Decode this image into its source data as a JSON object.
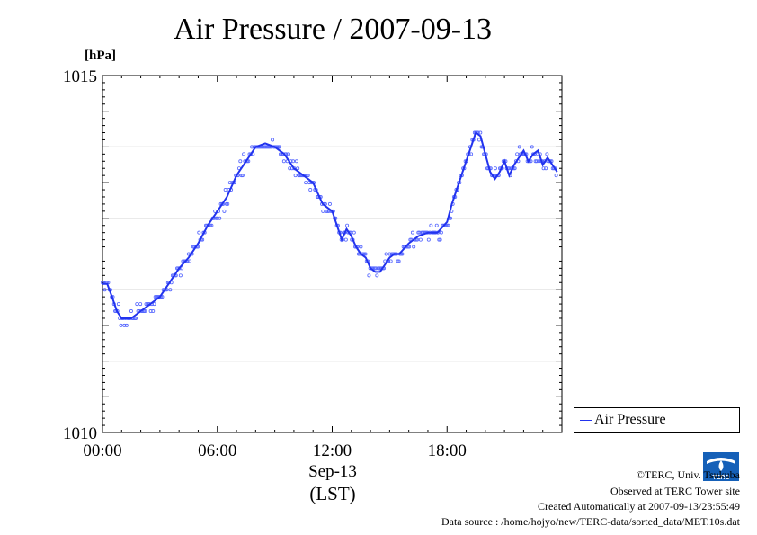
{
  "chart_data": {
    "type": "line",
    "title": "Air Pressure / 2007-09-13",
    "ylabel": "[hPa]",
    "xlabel_date": "Sep-13",
    "xlabel_tz": "(LST)",
    "ylim": [
      1010,
      1015
    ],
    "xlim": [
      0,
      24
    ],
    "y_tick_labels": [
      "1010",
      "1015"
    ],
    "y_gridlines": [
      1011,
      1012,
      1013,
      1014
    ],
    "x_ticks": [
      0,
      6,
      12,
      18
    ],
    "x_tick_labels": [
      "00:00",
      "06:00",
      "12:00",
      "18:00"
    ],
    "grid": "horizontal",
    "legend": "bottom-right, outside",
    "series": [
      {
        "name": "Air Pressure",
        "color": "#2233ee",
        "x": [
          0.0,
          0.25,
          0.5,
          0.75,
          1.0,
          1.5,
          2.0,
          2.5,
          3.0,
          3.5,
          4.0,
          4.5,
          5.0,
          5.5,
          6.0,
          6.5,
          7.0,
          7.5,
          8.0,
          8.5,
          9.0,
          9.5,
          10.0,
          10.5,
          11.0,
          11.25,
          11.5,
          12.0,
          12.25,
          12.5,
          12.75,
          13.0,
          13.25,
          13.5,
          13.75,
          14.0,
          14.25,
          14.5,
          14.75,
          15.0,
          15.25,
          15.5,
          16.0,
          16.5,
          17.0,
          17.5,
          18.0,
          18.25,
          18.5,
          18.75,
          19.0,
          19.25,
          19.5,
          19.75,
          20.0,
          20.25,
          20.5,
          20.75,
          21.0,
          21.25,
          21.5,
          22.0,
          22.25,
          22.5,
          22.75,
          23.0,
          23.25,
          23.5,
          23.75
        ],
        "values": [
          1012.08,
          1012.08,
          1011.9,
          1011.7,
          1011.6,
          1011.6,
          1011.7,
          1011.8,
          1011.9,
          1012.1,
          1012.3,
          1012.45,
          1012.65,
          1012.9,
          1013.1,
          1013.3,
          1013.6,
          1013.8,
          1014.0,
          1014.05,
          1014.0,
          1013.9,
          1013.7,
          1013.6,
          1013.5,
          1013.35,
          1013.2,
          1013.1,
          1012.9,
          1012.7,
          1012.85,
          1012.75,
          1012.6,
          1012.5,
          1012.45,
          1012.3,
          1012.25,
          1012.25,
          1012.35,
          1012.45,
          1012.5,
          1012.5,
          1012.65,
          1012.75,
          1012.8,
          1012.8,
          1012.95,
          1013.2,
          1013.4,
          1013.6,
          1013.8,
          1014.0,
          1014.2,
          1014.15,
          1013.9,
          1013.65,
          1013.55,
          1013.65,
          1013.8,
          1013.6,
          1013.75,
          1013.95,
          1013.8,
          1013.9,
          1013.95,
          1013.75,
          1013.85,
          1013.75,
          1013.65
        ]
      }
    ],
    "credits": {
      "copyright": "©TERC, Univ. Tsukuba",
      "observed": "Observed at TERC Tower site",
      "created": "Created Automatically at 2007-09-13/23:55:49",
      "source": "Data source : /home/hojyo/new/TERC-data/sorted_data/MET.10s.dat"
    },
    "logo_text": "TERC"
  }
}
